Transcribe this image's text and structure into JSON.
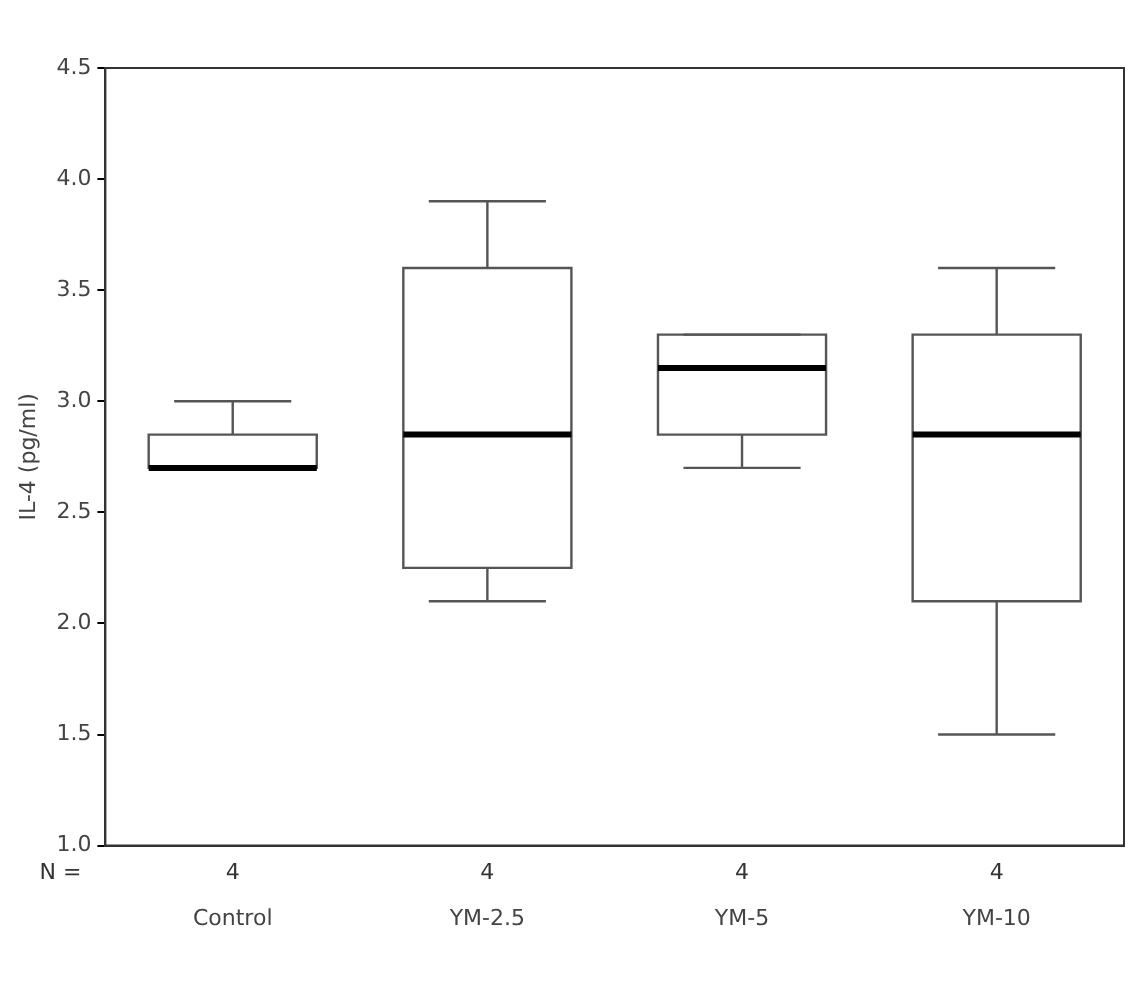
{
  "chart_data": {
    "type": "box",
    "ylabel": "IL-4 (pg/ml)",
    "categories": [
      "Control",
      "YM-2.5",
      "YM-5",
      "YM-10"
    ],
    "boxes": [
      {
        "low": 2.7,
        "q1": 2.7,
        "median": 2.7,
        "q3": 2.85,
        "high": 3.0
      },
      {
        "low": 2.1,
        "q1": 2.25,
        "median": 2.85,
        "q3": 3.6,
        "high": 3.9
      },
      {
        "low": 2.7,
        "q1": 2.85,
        "median": 3.15,
        "q3": 3.3,
        "high": 3.3
      },
      {
        "low": 1.5,
        "q1": 2.1,
        "median": 2.85,
        "q3": 3.3,
        "high": 3.6
      }
    ],
    "color": "#555555",
    "ylim": [
      1.0,
      4.5
    ],
    "yticks": [
      {
        "value": 1.0,
        "label": "1.0"
      },
      {
        "value": 1.5,
        "label": "1.5"
      },
      {
        "value": 2.0,
        "label": "2.0"
      },
      {
        "value": 2.5,
        "label": "2.5"
      },
      {
        "value": 3.0,
        "label": "3.0"
      },
      {
        "value": 3.5,
        "label": "3.5"
      },
      {
        "value": 4.0,
        "label": "4.0"
      },
      {
        "value": 4.5,
        "label": "4.5"
      }
    ],
    "grid": false,
    "legend": false,
    "annotations": [
      "N =",
      "4",
      "4",
      "4",
      "4"
    ]
  }
}
